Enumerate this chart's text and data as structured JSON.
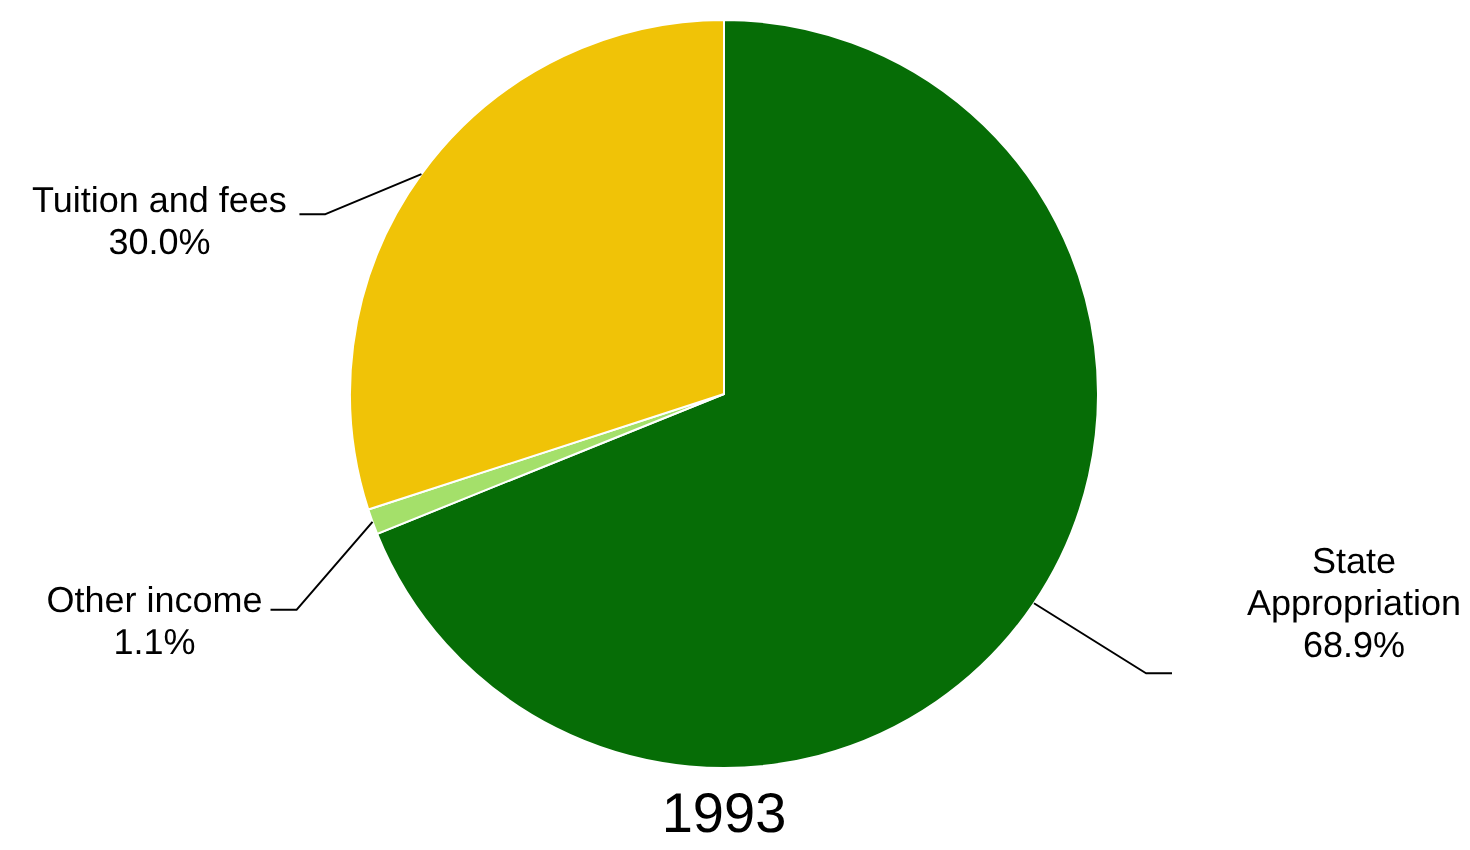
{
  "chart_data": {
    "type": "pie",
    "title": "1993",
    "categories": [
      "State Appropriation",
      "Other income",
      "Tuition and fees"
    ],
    "values": [
      68.9,
      1.1,
      30.0
    ],
    "colors": [
      "#066d06",
      "#a4e06a",
      "#f0c307"
    ],
    "value_labels": [
      "68.9%",
      "1.1%",
      "30.0%"
    ]
  }
}
